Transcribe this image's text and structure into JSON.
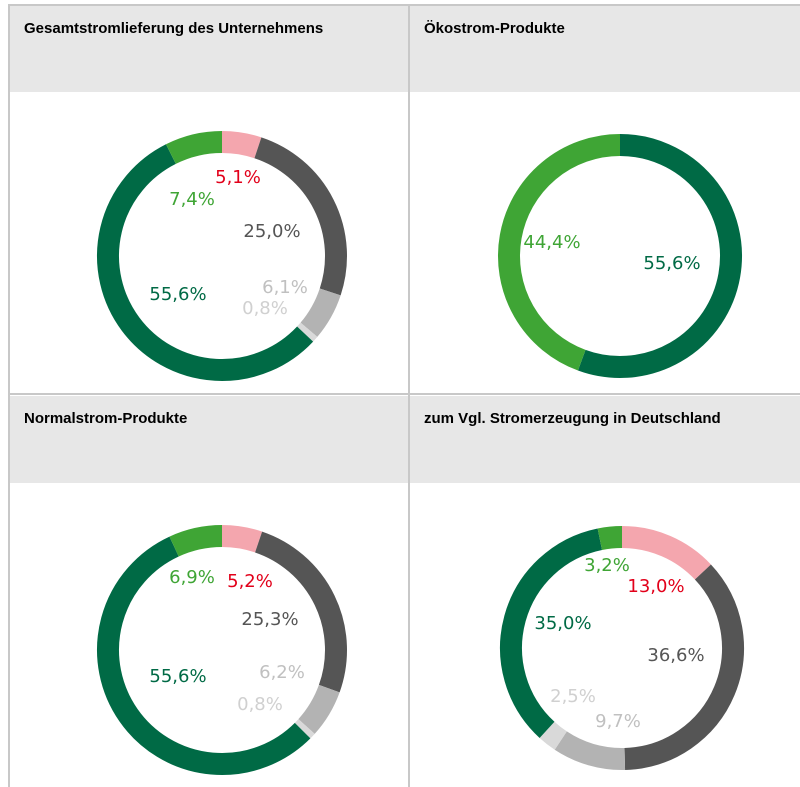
{
  "chart_data": [
    {
      "type": "pie",
      "title": "Gesamtstromlieferung des Unternehmens",
      "values": [
        5.1,
        25.0,
        6.1,
        0.8,
        55.6,
        7.4
      ],
      "value_labels": [
        "5,1%",
        "25,0%",
        "6,1%",
        "0,8%",
        "55,6%",
        "7,4%"
      ],
      "colors": [
        "#f4a6ae",
        "#555555",
        "#b3b3b3",
        "#d9d9d9",
        "#006a45",
        "#3fa535"
      ],
      "label_colors": [
        "#e2001a",
        "#555555",
        "#c0c0c0",
        "#d0d0d0",
        "#006a45",
        "#3fa535"
      ]
    },
    {
      "type": "pie",
      "title": "Ökostrom-Produkte",
      "values": [
        55.6,
        44.4
      ],
      "value_labels": [
        "55,6%",
        "44,4%"
      ],
      "colors": [
        "#006a45",
        "#3fa535"
      ],
      "label_colors": [
        "#006a45",
        "#3fa535"
      ]
    },
    {
      "type": "pie",
      "title": "Normalstrom-Produkte",
      "values": [
        5.2,
        25.3,
        6.2,
        0.8,
        55.6,
        6.9
      ],
      "value_labels": [
        "5,2%",
        "25,3%",
        "6,2%",
        "0,8%",
        "55,6%",
        "6,9%"
      ],
      "colors": [
        "#f4a6ae",
        "#555555",
        "#b3b3b3",
        "#d9d9d9",
        "#006a45",
        "#3fa535"
      ],
      "label_colors": [
        "#e2001a",
        "#555555",
        "#c0c0c0",
        "#d0d0d0",
        "#006a45",
        "#3fa535"
      ]
    },
    {
      "type": "pie",
      "title": "zum Vgl. Stromerzeugung in Deutschland",
      "values": [
        13.0,
        36.6,
        9.7,
        2.5,
        35.0,
        3.2
      ],
      "value_labels": [
        "13,0%",
        "36,6%",
        "9,7%",
        "2,5%",
        "35,0%",
        "3,2%"
      ],
      "colors": [
        "#f4a6ae",
        "#555555",
        "#b3b3b3",
        "#d9d9d9",
        "#006a45",
        "#3fa535"
      ],
      "label_colors": [
        "#e2001a",
        "#555555",
        "#c0c0c0",
        "#d0d0d0",
        "#006a45",
        "#3fa535"
      ]
    }
  ]
}
